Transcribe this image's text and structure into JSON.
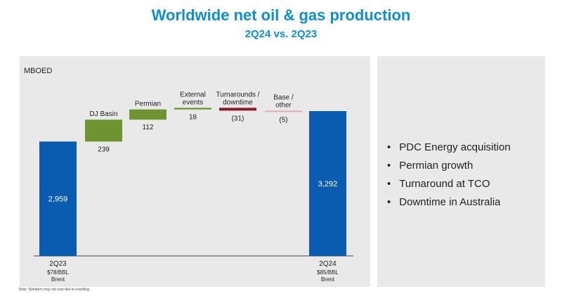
{
  "header": {
    "title": "Worldwide net oil & gas production",
    "subtitle": "2Q24 vs. 2Q23"
  },
  "chart_data": {
    "type": "bar",
    "ylabel": "MBOED",
    "categories": [
      "2Q23",
      "DJ Basin",
      "Permian",
      "External events",
      "Turnarounds / downtime",
      "Base / other",
      "2Q24"
    ],
    "category_sublabels": [
      [
        "$78/BBL",
        "Brent"
      ],
      [],
      [],
      [],
      [],
      [],
      [
        "$85/BBL",
        "Brent"
      ]
    ],
    "values": [
      2959,
      239,
      112,
      18,
      -31,
      -5,
      3292
    ],
    "value_labels": [
      "2,959",
      "239",
      "112",
      "18",
      "(31)",
      "(5)",
      "3,292"
    ],
    "bar_kinds": [
      "total",
      "increase",
      "increase",
      "increase",
      "decrease",
      "decrease",
      "total"
    ],
    "colors": {
      "total": "#0a5cb0",
      "increase": "#6e9432",
      "decrease": "#8b1a2b",
      "base_other": "#e8a9b4"
    }
  },
  "bullets": [
    "PDC Energy acquisition",
    "Permian growth",
    "Turnaround at TCO",
    "Downtime in Australia"
  ],
  "note": "Note: Numbers may not sum due to rounding."
}
